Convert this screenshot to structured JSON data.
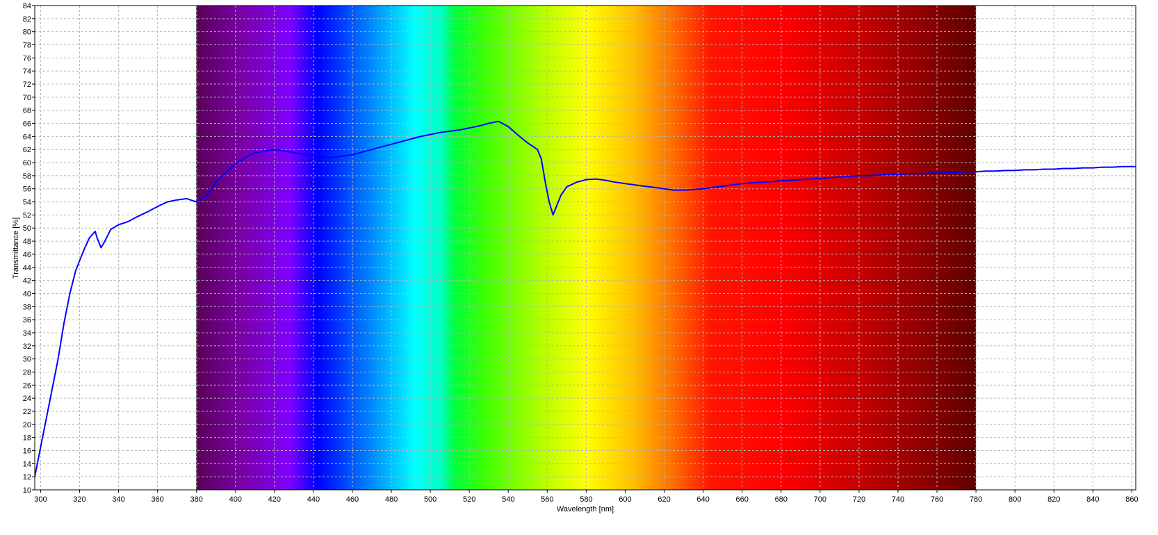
{
  "chart_data": {
    "type": "line",
    "title": "",
    "xlabel": "Wavelength [nm]",
    "ylabel": "Transmittance [%]",
    "xlim": [
      297,
      862
    ],
    "ylim": [
      10,
      84
    ],
    "x_ticks": [
      300,
      320,
      340,
      360,
      380,
      400,
      420,
      440,
      460,
      480,
      500,
      520,
      540,
      560,
      580,
      600,
      620,
      640,
      660,
      680,
      700,
      720,
      740,
      760,
      780,
      800,
      820,
      840,
      860
    ],
    "y_ticks": [
      10,
      12,
      14,
      16,
      18,
      20,
      22,
      24,
      26,
      28,
      30,
      32,
      34,
      36,
      38,
      40,
      42,
      44,
      46,
      48,
      50,
      52,
      54,
      56,
      58,
      60,
      62,
      64,
      66,
      68,
      70,
      72,
      74,
      76,
      78,
      80,
      82,
      84
    ],
    "grid": true,
    "legend": "none",
    "visible_spectrum_band": {
      "from": 380,
      "to": 780
    },
    "series": [
      {
        "color": "#0000ff",
        "x": [
          297,
          300,
          303,
          306,
          309,
          312,
          315,
          318,
          320,
          322,
          325,
          328,
          329,
          331,
          333,
          336,
          340,
          345,
          350,
          355,
          360,
          365,
          370,
          375,
          380,
          385,
          390,
          395,
          400,
          405,
          410,
          415,
          420,
          425,
          430,
          435,
          440,
          445,
          450,
          455,
          460,
          465,
          470,
          475,
          480,
          485,
          490,
          495,
          500,
          505,
          510,
          515,
          520,
          525,
          530,
          535,
          540,
          545,
          550,
          555,
          557,
          559,
          561,
          563,
          565,
          567,
          570,
          575,
          580,
          585,
          590,
          595,
          600,
          605,
          610,
          615,
          620,
          625,
          630,
          635,
          640,
          645,
          650,
          655,
          660,
          665,
          670,
          675,
          680,
          685,
          690,
          695,
          700,
          705,
          710,
          715,
          720,
          725,
          730,
          735,
          740,
          745,
          750,
          755,
          760,
          765,
          770,
          775,
          780,
          785,
          790,
          795,
          800,
          805,
          810,
          815,
          820,
          825,
          830,
          835,
          840,
          845,
          850,
          855,
          860,
          862
        ],
        "y": [
          12.0,
          16.5,
          21.0,
          25.5,
          30.0,
          35.5,
          40.0,
          43.5,
          45.0,
          46.5,
          48.5,
          49.5,
          48.5,
          47.0,
          48.0,
          49.8,
          50.5,
          51.0,
          51.8,
          52.5,
          53.3,
          54.0,
          54.3,
          54.5,
          54.0,
          54.8,
          57.0,
          58.5,
          59.8,
          60.8,
          61.5,
          61.8,
          62.0,
          61.8,
          61.5,
          61.3,
          61.0,
          60.8,
          60.8,
          61.0,
          61.2,
          61.6,
          62.0,
          62.4,
          62.8,
          63.2,
          63.6,
          64.0,
          64.3,
          64.6,
          64.8,
          65.0,
          65.3,
          65.6,
          66.0,
          66.3,
          65.5,
          64.2,
          63.0,
          62.0,
          60.5,
          57.0,
          54.0,
          52.0,
          53.5,
          55.0,
          56.3,
          57.0,
          57.4,
          57.5,
          57.3,
          57.0,
          56.8,
          56.6,
          56.4,
          56.2,
          56.0,
          55.8,
          55.8,
          55.9,
          56.0,
          56.2,
          56.4,
          56.6,
          56.8,
          56.9,
          57.0,
          57.1,
          57.2,
          57.3,
          57.4,
          57.5,
          57.6,
          57.7,
          57.8,
          57.9,
          58.0,
          58.0,
          58.1,
          58.2,
          58.2,
          58.3,
          58.3,
          58.4,
          58.4,
          58.5,
          58.5,
          58.6,
          58.6,
          58.7,
          58.7,
          58.8,
          58.8,
          58.9,
          58.9,
          59.0,
          59.0,
          59.1,
          59.1,
          59.2,
          59.2,
          59.3,
          59.3,
          59.4,
          59.4,
          59.4
        ]
      }
    ]
  }
}
